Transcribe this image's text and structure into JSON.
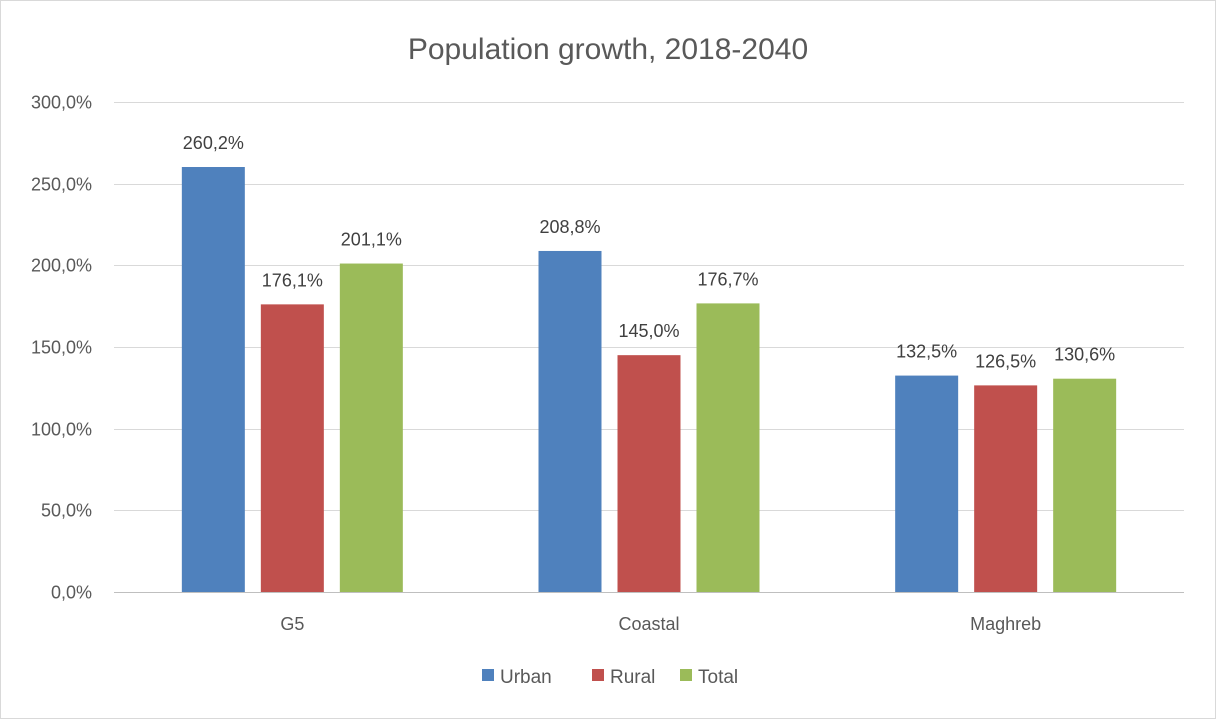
{
  "chart_data": {
    "type": "bar",
    "title": "Population growth, 2018-2040",
    "categories": [
      "G5",
      "Coastal",
      "Maghreb"
    ],
    "series": [
      {
        "name": "Urban",
        "color": "#4f81bd",
        "values": [
          260.2,
          208.8,
          132.5
        ],
        "labels": [
          "260,2%",
          "208,8%",
          "132,5%"
        ]
      },
      {
        "name": "Rural",
        "color": "#c0504d",
        "values": [
          176.1,
          145.0,
          126.5
        ],
        "labels": [
          "176,1%",
          "145,0%",
          "126,5%"
        ]
      },
      {
        "name": "Total",
        "color": "#9bbb59",
        "values": [
          201.1,
          176.7,
          130.6
        ],
        "labels": [
          "201,1%",
          "176,7%",
          "130,6%"
        ]
      }
    ],
    "ylim": [
      0,
      300
    ],
    "yticks": [
      0,
      50,
      100,
      150,
      200,
      250,
      300
    ],
    "ytick_labels": [
      "0,0%",
      "50,0%",
      "100,0%",
      "150,0%",
      "200,0%",
      "250,0%",
      "300,0%"
    ],
    "grid": true,
    "legend_position": "bottom"
  }
}
